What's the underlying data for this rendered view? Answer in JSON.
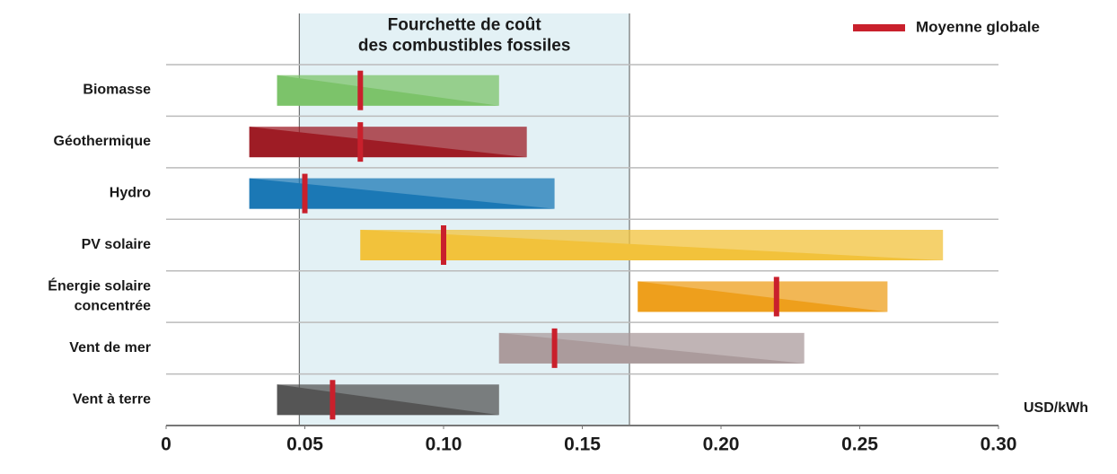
{
  "chart_data": {
    "type": "range",
    "categories": [
      "Biomasse",
      "Géothermique",
      "Hydro",
      "PV solaire",
      "Énergie solaire\nconcentrée",
      "Vent de mer",
      "Vent à terre"
    ],
    "low": [
      0.04,
      0.03,
      0.03,
      0.07,
      0.17,
      0.12,
      0.04
    ],
    "high": [
      0.12,
      0.13,
      0.14,
      0.28,
      0.26,
      0.23,
      0.12
    ],
    "average": [
      0.07,
      0.07,
      0.05,
      0.1,
      0.22,
      0.14,
      0.06
    ],
    "colors": [
      "#7cc36a",
      "#9e1c25",
      "#1b78b5",
      "#f2c23b",
      "#ee9f1c",
      "#ab9b9c",
      "#555555"
    ],
    "average_name": "Moyenne globale",
    "average_color": "#c9202c",
    "shaded_range": {
      "label": "Fourchette de coût\ndes combustibles fossiles",
      "range": [
        0.048,
        0.167
      ],
      "color": "#e3f1f5"
    },
    "xlabel": "USD/kWh",
    "xlim": [
      0,
      0.3
    ],
    "xticks": [
      0,
      0.05,
      {
        "value": 0.1,
        "label": "0.10"
      },
      0.15,
      {
        "value": 0.2,
        "label": "0.20"
      },
      0.25,
      {
        "value": 0.3,
        "label": "0.30"
      }
    ],
    "grid": true
  }
}
